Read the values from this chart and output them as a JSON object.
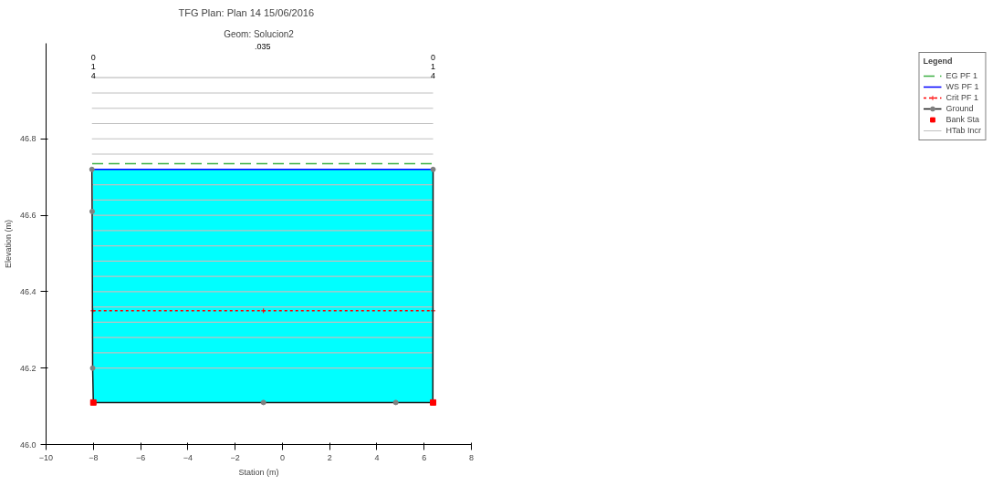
{
  "chart_data": {
    "type": "line",
    "title": "TFG      Plan: Plan 14     15/06/2016",
    "subtitle": "Geom: Solucion2",
    "xlabel": "Station (m)",
    "ylabel": "Elevation (m)",
    "legend_title": "Legend",
    "legend": "right",
    "grid": false,
    "xlim": [
      -10,
      8
    ],
    "xticks": [
      -10,
      -8,
      -6,
      -4,
      -2,
      0,
      2,
      4,
      6,
      8
    ],
    "ylim": [
      46.0,
      47.05
    ],
    "yticks": [
      {
        "value": 46.0,
        "label": "46.0"
      },
      46.2,
      46.4,
      46.6,
      46.8
    ],
    "series": [
      {
        "name": "EG PF 1",
        "color": "#3cb043",
        "line_style": "dashed",
        "x": [
          -8.05,
          6.38
        ],
        "values": [
          46.735,
          46.735
        ]
      },
      {
        "name": "WS PF 1",
        "color": "#0000ff",
        "x": [
          -8.02,
          6.38
        ],
        "values": [
          46.72,
          46.72
        ],
        "lower": [
          46.11,
          46.11
        ],
        "upper": [
          46.72,
          46.72
        ]
      },
      {
        "name": "Crit PF 1",
        "color": "#ff0000",
        "line_style": "dotted",
        "marker": "cross",
        "x": [
          -8.02,
          -0.8,
          6.38
        ],
        "values": [
          46.35,
          46.35,
          46.35
        ]
      },
      {
        "name": "Ground",
        "color": "#1a1a1a",
        "line_style": "solid",
        "marker": "circle",
        "x": [
          -8.06,
          -8.05,
          -8.03,
          -8.0,
          -0.8,
          4.8,
          6.37,
          6.38
        ],
        "values": [
          46.72,
          46.61,
          46.2,
          46.11,
          46.11,
          46.11,
          46.11,
          46.72
        ]
      },
      {
        "name": "Bank Sta",
        "type": "scatter",
        "color": "#ff0000",
        "marker": "square",
        "x": [
          -8.0,
          6.38
        ],
        "values": [
          46.11,
          46.11
        ]
      }
    ],
    "ref_lines": [
      {
        "axis": "y",
        "value": 46.2,
        "label": "HTab Incr",
        "color": "#c0c0c0"
      },
      {
        "axis": "y",
        "value": 46.24,
        "color": "#c0c0c0"
      },
      {
        "axis": "y",
        "value": 46.28,
        "color": "#c0c0c0"
      },
      {
        "axis": "y",
        "value": 46.32,
        "color": "#c0c0c0"
      },
      {
        "axis": "y",
        "value": 46.36,
        "color": "#c0c0c0"
      },
      {
        "axis": "y",
        "value": 46.4,
        "color": "#c0c0c0"
      },
      {
        "axis": "y",
        "value": 46.44,
        "color": "#c0c0c0"
      },
      {
        "axis": "y",
        "value": 46.48,
        "color": "#c0c0c0"
      },
      {
        "axis": "y",
        "value": 46.52,
        "color": "#c0c0c0"
      },
      {
        "axis": "y",
        "value": 46.56,
        "color": "#c0c0c0"
      },
      {
        "axis": "y",
        "value": 46.6,
        "color": "#c0c0c0"
      },
      {
        "axis": "y",
        "value": 46.64,
        "color": "#c0c0c0"
      },
      {
        "axis": "y",
        "value": 46.68,
        "color": "#c0c0c0"
      },
      {
        "axis": "y",
        "value": 46.76,
        "color": "#c0c0c0"
      },
      {
        "axis": "y",
        "value": 46.8,
        "color": "#c0c0c0"
      },
      {
        "axis": "y",
        "value": 46.84,
        "color": "#c0c0c0"
      },
      {
        "axis": "y",
        "value": 46.88,
        "color": "#c0c0c0"
      },
      {
        "axis": "y",
        "value": 46.92,
        "color": "#c0c0c0"
      },
      {
        "axis": "y",
        "value": 46.96,
        "color": "#c0c0c0"
      }
    ],
    "annotations": [
      ".035",
      "014",
      "014"
    ]
  }
}
